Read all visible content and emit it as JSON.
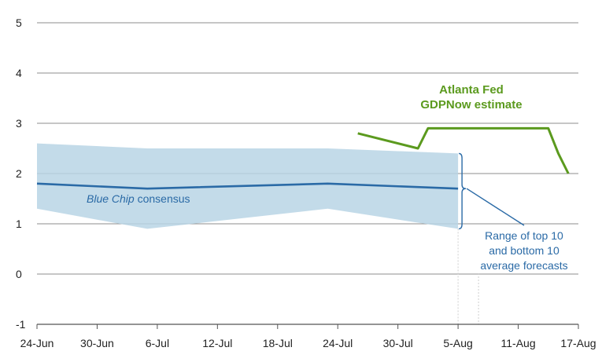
{
  "chart_data": {
    "type": "line",
    "x_ticks": [
      "24-Jun",
      "30-Jun",
      "6-Jul",
      "12-Jul",
      "18-Jul",
      "24-Jul",
      "30-Jul",
      "5-Aug",
      "11-Aug",
      "17-Aug"
    ],
    "y_ticks": [
      "5",
      "4",
      "3",
      "2",
      "1",
      "0",
      "-1"
    ],
    "ylim": [
      -1,
      5
    ],
    "xlim": [
      "24-Jun",
      "17-Aug"
    ],
    "grid": "horizontal",
    "colors": {
      "consensus": "#2a6aa6",
      "band": "#b8d5e5",
      "gdpnow": "#5b9a1e",
      "annotation_text": "#2a6aa6"
    },
    "series": [
      {
        "name": "Blue Chip consensus",
        "style": "line",
        "points": [
          {
            "x": "24-Jun",
            "y": 1.8
          },
          {
            "x": "5-Jul",
            "y": 1.7
          },
          {
            "x": "23-Jul",
            "y": 1.8
          },
          {
            "x": "5-Aug",
            "y": 1.7
          }
        ]
      },
      {
        "name": "Range of top 10 and bottom 10 average forecasts",
        "style": "band",
        "upper": [
          {
            "x": "24-Jun",
            "y": 2.6
          },
          {
            "x": "5-Jul",
            "y": 2.5
          },
          {
            "x": "23-Jul",
            "y": 2.5
          },
          {
            "x": "5-Aug",
            "y": 2.4
          }
        ],
        "lower": [
          {
            "x": "24-Jun",
            "y": 1.3
          },
          {
            "x": "5-Jul",
            "y": 0.9
          },
          {
            "x": "23-Jul",
            "y": 1.3
          },
          {
            "x": "5-Aug",
            "y": 0.9
          }
        ]
      },
      {
        "name": "Atlanta Fed GDPNow estimate",
        "style": "line",
        "points": [
          {
            "x": "26-Jul",
            "y": 2.8
          },
          {
            "x": "1-Aug",
            "y": 2.5
          },
          {
            "x": "2-Aug",
            "y": 2.9
          },
          {
            "x": "14-Aug",
            "y": 2.9
          },
          {
            "x": "15-Aug",
            "y": 2.4
          },
          {
            "x": "16-Aug",
            "y": 2.0
          }
        ]
      }
    ],
    "annotations": {
      "gdpnow_line1": "Atlanta Fed",
      "gdpnow_line2": "GDPNow estimate",
      "consensus_italic": "Blue Chip",
      "consensus_rest": " consensus",
      "range_line1": "Range of top 10",
      "range_line2": "and bottom 10",
      "range_line3": "average forecasts"
    }
  }
}
